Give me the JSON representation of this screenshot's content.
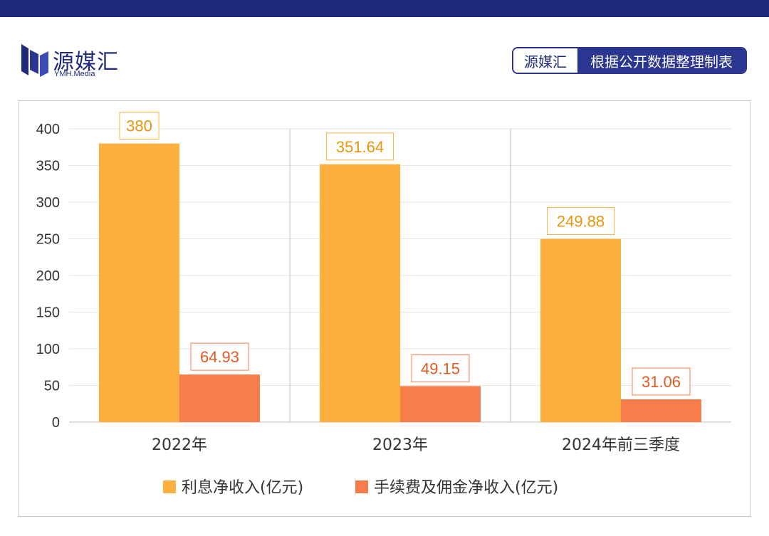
{
  "brand": {
    "name": "源媒汇",
    "sub": "YMH.Media"
  },
  "source_tag": {
    "left": "源媒汇",
    "right": "根据公开数据整理制表"
  },
  "colors": {
    "header": "#1f2a7a",
    "series_interest": "#fbb040",
    "series_fee": "#f97d4a",
    "label_interest": "#e8940d",
    "label_fee": "#e05a20"
  },
  "chart_data": {
    "type": "bar",
    "categories": [
      "2022年",
      "2023年",
      "2024年前三季度"
    ],
    "series": [
      {
        "name": "利息净收入(亿元)",
        "values": [
          380,
          351.64,
          249.88
        ],
        "labels": [
          "380",
          "351.64",
          "249.88"
        ]
      },
      {
        "name": "手续费及佣金净收入(亿元)",
        "values": [
          64.93,
          49.15,
          31.06
        ],
        "labels": [
          "64.93",
          "49.15",
          "31.06"
        ]
      }
    ],
    "ylim": [
      0,
      400
    ],
    "yticks": [
      "0",
      "50",
      "100",
      "150",
      "200",
      "250",
      "300",
      "350",
      "400"
    ],
    "grid": true,
    "legend": "bottom"
  }
}
